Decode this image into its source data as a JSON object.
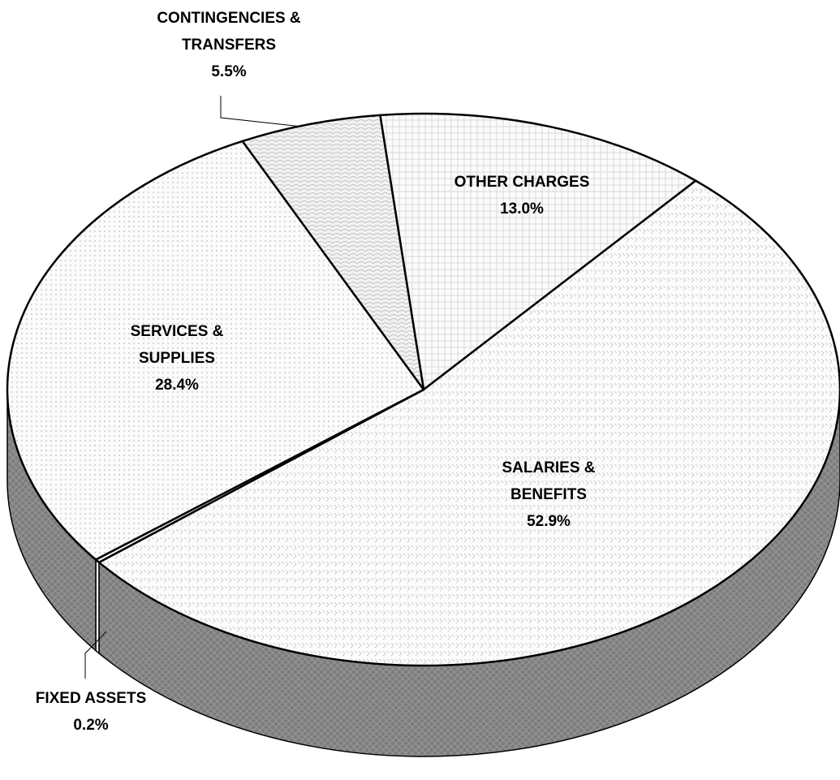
{
  "chart_data": {
    "type": "pie",
    "categories": [
      "OTHER CHARGES",
      "SALARIES & BENEFITS",
      "FIXED ASSETS",
      "SERVICES & SUPPLIES",
      "CONTINGENCIES & TRANSFERS"
    ],
    "values": [
      13.0,
      52.9,
      0.2,
      28.4,
      5.5
    ],
    "value_labels": [
      "13.0%",
      "52.9%",
      "0.2%",
      "28.4%",
      "5.5%"
    ]
  }
}
